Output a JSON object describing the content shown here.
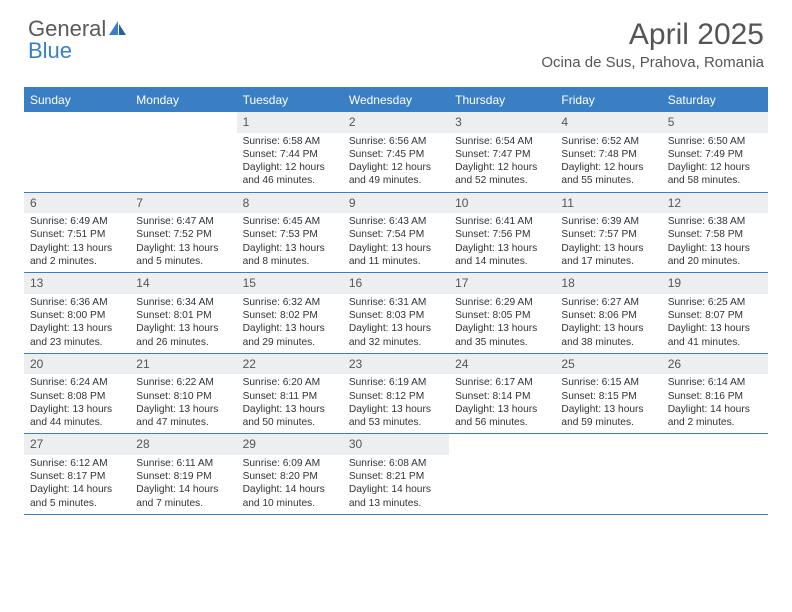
{
  "logo": {
    "part1": "General",
    "part2": "Blue"
  },
  "title": "April 2025",
  "location": "Ocina de Sus, Prahova, Romania",
  "colors": {
    "accent": "#3a7fc4",
    "header_text": "#ffffff",
    "daynum_bg": "#eceeef",
    "body_text": "#333333",
    "title_text": "#555555"
  },
  "dayNames": [
    "Sunday",
    "Monday",
    "Tuesday",
    "Wednesday",
    "Thursday",
    "Friday",
    "Saturday"
  ],
  "weeks": [
    [
      null,
      null,
      {
        "n": "1",
        "sr": "6:58 AM",
        "ss": "7:44 PM",
        "dl": "12 hours and 46 minutes."
      },
      {
        "n": "2",
        "sr": "6:56 AM",
        "ss": "7:45 PM",
        "dl": "12 hours and 49 minutes."
      },
      {
        "n": "3",
        "sr": "6:54 AM",
        "ss": "7:47 PM",
        "dl": "12 hours and 52 minutes."
      },
      {
        "n": "4",
        "sr": "6:52 AM",
        "ss": "7:48 PM",
        "dl": "12 hours and 55 minutes."
      },
      {
        "n": "5",
        "sr": "6:50 AM",
        "ss": "7:49 PM",
        "dl": "12 hours and 58 minutes."
      }
    ],
    [
      {
        "n": "6",
        "sr": "6:49 AM",
        "ss": "7:51 PM",
        "dl": "13 hours and 2 minutes."
      },
      {
        "n": "7",
        "sr": "6:47 AM",
        "ss": "7:52 PM",
        "dl": "13 hours and 5 minutes."
      },
      {
        "n": "8",
        "sr": "6:45 AM",
        "ss": "7:53 PM",
        "dl": "13 hours and 8 minutes."
      },
      {
        "n": "9",
        "sr": "6:43 AM",
        "ss": "7:54 PM",
        "dl": "13 hours and 11 minutes."
      },
      {
        "n": "10",
        "sr": "6:41 AM",
        "ss": "7:56 PM",
        "dl": "13 hours and 14 minutes."
      },
      {
        "n": "11",
        "sr": "6:39 AM",
        "ss": "7:57 PM",
        "dl": "13 hours and 17 minutes."
      },
      {
        "n": "12",
        "sr": "6:38 AM",
        "ss": "7:58 PM",
        "dl": "13 hours and 20 minutes."
      }
    ],
    [
      {
        "n": "13",
        "sr": "6:36 AM",
        "ss": "8:00 PM",
        "dl": "13 hours and 23 minutes."
      },
      {
        "n": "14",
        "sr": "6:34 AM",
        "ss": "8:01 PM",
        "dl": "13 hours and 26 minutes."
      },
      {
        "n": "15",
        "sr": "6:32 AM",
        "ss": "8:02 PM",
        "dl": "13 hours and 29 minutes."
      },
      {
        "n": "16",
        "sr": "6:31 AM",
        "ss": "8:03 PM",
        "dl": "13 hours and 32 minutes."
      },
      {
        "n": "17",
        "sr": "6:29 AM",
        "ss": "8:05 PM",
        "dl": "13 hours and 35 minutes."
      },
      {
        "n": "18",
        "sr": "6:27 AM",
        "ss": "8:06 PM",
        "dl": "13 hours and 38 minutes."
      },
      {
        "n": "19",
        "sr": "6:25 AM",
        "ss": "8:07 PM",
        "dl": "13 hours and 41 minutes."
      }
    ],
    [
      {
        "n": "20",
        "sr": "6:24 AM",
        "ss": "8:08 PM",
        "dl": "13 hours and 44 minutes."
      },
      {
        "n": "21",
        "sr": "6:22 AM",
        "ss": "8:10 PM",
        "dl": "13 hours and 47 minutes."
      },
      {
        "n": "22",
        "sr": "6:20 AM",
        "ss": "8:11 PM",
        "dl": "13 hours and 50 minutes."
      },
      {
        "n": "23",
        "sr": "6:19 AM",
        "ss": "8:12 PM",
        "dl": "13 hours and 53 minutes."
      },
      {
        "n": "24",
        "sr": "6:17 AM",
        "ss": "8:14 PM",
        "dl": "13 hours and 56 minutes."
      },
      {
        "n": "25",
        "sr": "6:15 AM",
        "ss": "8:15 PM",
        "dl": "13 hours and 59 minutes."
      },
      {
        "n": "26",
        "sr": "6:14 AM",
        "ss": "8:16 PM",
        "dl": "14 hours and 2 minutes."
      }
    ],
    [
      {
        "n": "27",
        "sr": "6:12 AM",
        "ss": "8:17 PM",
        "dl": "14 hours and 5 minutes."
      },
      {
        "n": "28",
        "sr": "6:11 AM",
        "ss": "8:19 PM",
        "dl": "14 hours and 7 minutes."
      },
      {
        "n": "29",
        "sr": "6:09 AM",
        "ss": "8:20 PM",
        "dl": "14 hours and 10 minutes."
      },
      {
        "n": "30",
        "sr": "6:08 AM",
        "ss": "8:21 PM",
        "dl": "14 hours and 13 minutes."
      },
      null,
      null,
      null
    ]
  ],
  "labels": {
    "sunrise": "Sunrise: ",
    "sunset": "Sunset: ",
    "daylight": "Daylight: "
  }
}
